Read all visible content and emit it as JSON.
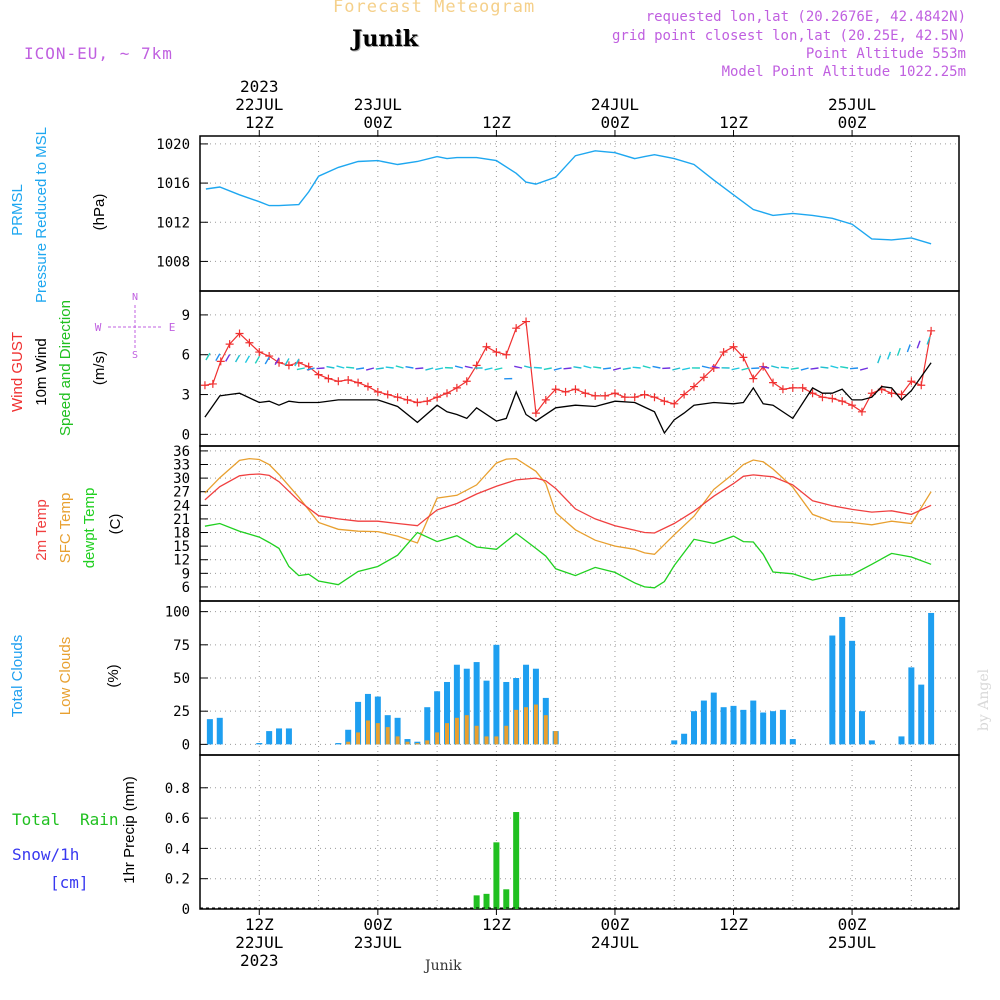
{
  "header": {
    "title": "Forecast Meteogram",
    "location": "Junik",
    "model": "ICON-EU, ~ 7km",
    "requested": "requested lon,lat (20.2676E, 42.4842N)",
    "grid_point": "grid point closest lon,lat (20.25E, 42.5N)",
    "point_altitude": "Point Altitude 553m",
    "model_altitude": "Model Point Altitude 1022.25m",
    "credit": "by Angel",
    "footer_location": "Junik"
  },
  "colors": {
    "title": "#f5d08a",
    "info": "#c060e0",
    "pressure": "#1ea7f0",
    "gust": "#f03030",
    "wind": "#000000",
    "dir": "#20c020",
    "temp2m": "#f04040",
    "sfc": "#e8a030",
    "dew": "#20d020",
    "total_cloud": "#1e9ff0",
    "low_cloud": "#e8a030",
    "rain": "#20c020",
    "snow": "#3838f0"
  },
  "time_axis": {
    "top_labels": [
      {
        "h": 12,
        "lines": [
          "2023",
          "22JUL",
          "12Z"
        ]
      },
      {
        "h": 24,
        "lines": [
          "23JUL",
          "00Z"
        ]
      },
      {
        "h": 36,
        "lines": [
          "12Z"
        ]
      },
      {
        "h": 48,
        "lines": [
          "24JUL",
          "00Z"
        ]
      },
      {
        "h": 60,
        "lines": [
          "12Z"
        ]
      },
      {
        "h": 72,
        "lines": [
          "25JUL",
          "00Z"
        ]
      }
    ],
    "bottom_labels": [
      {
        "h": 12,
        "lines": [
          "12Z",
          "22JUL",
          "2023"
        ]
      },
      {
        "h": 24,
        "lines": [
          "00Z",
          "23JUL"
        ]
      },
      {
        "h": 36,
        "lines": [
          "12Z"
        ]
      },
      {
        "h": 48,
        "lines": [
          "00Z",
          "24JUL"
        ]
      },
      {
        "h": 60,
        "lines": [
          "12Z"
        ]
      },
      {
        "h": 72,
        "lines": [
          "00Z",
          "25JUL"
        ]
      }
    ]
  },
  "chart_data": [
    {
      "type": "line",
      "title": "PRMSL Pressure Reduced to MSL",
      "ylabel": "(hPa)",
      "ylim": [
        1006,
        1020.4
      ],
      "yticks": [
        "1008",
        "1012",
        "1016",
        "1020"
      ],
      "series": [
        {
          "name": "PRMSL",
          "x": [
            6.6,
            8,
            10,
            12,
            13,
            14,
            16,
            17,
            18,
            20,
            22,
            24,
            26,
            28,
            30,
            31,
            32,
            33,
            34,
            36,
            38,
            39,
            40,
            42,
            44,
            46,
            48,
            50,
            51,
            52,
            54,
            56,
            58,
            60,
            62,
            64,
            66,
            68,
            70,
            72,
            74,
            76,
            78,
            80
          ],
          "values": [
            1015.4,
            1015.6,
            1014.8,
            1014.1,
            1013.7,
            1013.7,
            1013.8,
            1015.1,
            1016.7,
            1017.6,
            1018.2,
            1018.3,
            1017.9,
            1018.2,
            1018.7,
            1018.5,
            1018.6,
            1018.6,
            1018.6,
            1018.3,
            1017.0,
            1016.1,
            1015.9,
            1016.6,
            1018.8,
            1019.3,
            1019.1,
            1018.5,
            1018.7,
            1018.9,
            1018.5,
            1017.9,
            1016.3,
            1014.8,
            1013.3,
            1012.7,
            1012.9,
            1012.7,
            1012.4,
            1011.8,
            1010.3,
            1010.2,
            1010.4,
            1009.8
          ]
        }
      ]
    },
    {
      "type": "line",
      "title": "Wind GUST / 10m Wind Speed and Direction",
      "ylabel": "(m/s)",
      "ylim": [
        -0.5,
        10.5
      ],
      "yticks": [
        "0",
        "3",
        "6",
        "9"
      ],
      "compass": [
        "N",
        "S",
        "W",
        "E"
      ],
      "series": [
        {
          "name": "Wind GUST",
          "x": [
            6.5,
            7.3,
            8.1,
            9,
            10,
            11,
            12,
            13,
            14,
            15,
            16,
            17,
            18,
            19,
            20,
            21,
            22,
            23,
            24,
            25,
            26,
            27,
            28,
            29,
            30,
            31,
            32,
            33,
            34,
            35,
            36,
            37,
            38,
            39,
            40,
            41,
            42,
            43,
            44,
            45,
            46,
            47,
            48,
            49,
            50,
            51,
            52,
            53,
            54,
            55,
            56,
            57,
            58,
            59,
            60,
            61,
            62,
            63,
            64,
            65,
            66,
            67,
            68,
            69,
            70,
            71,
            72,
            73,
            74,
            75,
            76,
            77,
            78,
            79,
            80
          ],
          "values": [
            3.7,
            3.8,
            5.5,
            6.8,
            7.6,
            6.9,
            6.2,
            5.9,
            5.4,
            5.2,
            5.4,
            5.1,
            4.5,
            4.2,
            4.0,
            4.1,
            3.9,
            3.6,
            3.2,
            3.0,
            2.8,
            2.6,
            2.4,
            2.5,
            2.8,
            3.1,
            3.5,
            4.0,
            5.2,
            6.6,
            6.2,
            6.0,
            8.0,
            8.5,
            1.6,
            2.6,
            3.4,
            3.2,
            3.4,
            3.1,
            2.9,
            2.9,
            3.1,
            2.8,
            2.8,
            3.0,
            2.8,
            2.5,
            2.3,
            3.0,
            3.6,
            4.3,
            5.0,
            6.2,
            6.6,
            5.8,
            4.2,
            5.1,
            3.9,
            3.4,
            3.5,
            3.5,
            3.1,
            2.8,
            2.7,
            2.5,
            2.2,
            1.7,
            3.1,
            3.4,
            3.1,
            3.0,
            4.0,
            3.7,
            7.8
          ]
        },
        {
          "name": "10m Wind",
          "x": [
            6.5,
            8,
            9,
            10,
            12,
            13,
            14,
            15,
            16,
            18,
            20,
            22,
            24,
            26,
            28,
            30,
            31,
            32,
            33,
            34,
            36,
            37,
            38,
            39,
            40,
            42,
            44,
            46,
            48,
            50,
            52,
            53,
            54,
            55,
            56,
            58,
            60,
            61,
            62,
            63,
            64,
            66,
            68,
            69,
            70,
            71,
            72,
            73,
            74,
            75,
            76,
            77,
            78,
            80
          ],
          "values": [
            1.3,
            2.9,
            3.0,
            3.1,
            2.4,
            2.5,
            2.2,
            2.5,
            2.4,
            2.4,
            2.6,
            2.6,
            2.6,
            2.1,
            0.9,
            2.2,
            1.7,
            1.5,
            1.2,
            2.0,
            1.0,
            1.2,
            3.2,
            1.5,
            1.0,
            2.0,
            2.2,
            2.1,
            2.5,
            2.4,
            1.7,
            0.1,
            1.1,
            1.6,
            2.2,
            2.4,
            2.3,
            2.4,
            3.5,
            2.3,
            2.2,
            1.2,
            3.5,
            3.1,
            3.1,
            3.4,
            2.6,
            2.6,
            2.8,
            3.6,
            3.5,
            2.6,
            3.3,
            5.4
          ]
        }
      ]
    },
    {
      "type": "line",
      "title": "2m Temp / SFC Temp / dewpt Temp",
      "ylabel": "(C)",
      "ylim": [
        4,
        36.2
      ],
      "yticks": [
        "6",
        "9",
        "12",
        "15",
        "18",
        "21",
        "24",
        "27",
        "30",
        "33",
        "36"
      ],
      "series": [
        {
          "name": "2m Temp",
          "x": [
            6.5,
            8,
            10,
            11,
            12,
            13,
            14,
            16,
            18,
            20,
            22,
            24,
            26,
            28,
            30,
            32,
            34,
            36,
            38,
            40,
            41,
            42,
            44,
            46,
            48,
            50,
            51,
            52,
            54,
            56,
            58,
            60,
            61,
            62,
            64,
            66,
            68,
            70,
            72,
            74,
            76,
            78,
            80
          ],
          "values": [
            25.2,
            28.1,
            30.5,
            30.8,
            30.9,
            30.6,
            29.2,
            25.0,
            21.7,
            21.0,
            20.5,
            20.5,
            20.0,
            19.5,
            23.0,
            24.4,
            26.5,
            28.2,
            29.6,
            30.0,
            29.4,
            27.7,
            23.2,
            21.0,
            19.5,
            18.5,
            18.0,
            17.9,
            20.0,
            22.7,
            26.0,
            28.8,
            30.4,
            30.7,
            30.3,
            28.5,
            25.0,
            23.9,
            23.1,
            22.5,
            22.8,
            22.0,
            24.0
          ]
        },
        {
          "name": "SFC Temp",
          "x": [
            6.5,
            8,
            10,
            11,
            12,
            13,
            14,
            16,
            18,
            20,
            22,
            24,
            26,
            28,
            30,
            32,
            34,
            36,
            37,
            38,
            40,
            41,
            42,
            44,
            46,
            48,
            50,
            51,
            52,
            54,
            56,
            58,
            60,
            61,
            62,
            63,
            64,
            66,
            68,
            70,
            72,
            74,
            76,
            78,
            80
          ],
          "values": [
            26.7,
            30.1,
            33.9,
            34.3,
            34.1,
            33.0,
            30.8,
            25.8,
            20.2,
            18.7,
            18.3,
            18.2,
            17.2,
            15.7,
            25.6,
            26.2,
            28.5,
            33.3,
            34.2,
            34.3,
            31.5,
            28.8,
            22.4,
            18.6,
            16.3,
            15.0,
            14.3,
            13.5,
            13.2,
            17.5,
            21.6,
            27.5,
            31.0,
            33.0,
            34.0,
            33.6,
            32.0,
            28.0,
            22.0,
            20.4,
            20.2,
            19.7,
            20.5,
            20.0,
            27.0
          ]
        },
        {
          "name": "dewpt Temp",
          "x": [
            6.5,
            8,
            10,
            12,
            13,
            14,
            15,
            16,
            17,
            18,
            20,
            22,
            24,
            26,
            28,
            30,
            32,
            34,
            36,
            38,
            40,
            41,
            42,
            44,
            46,
            48,
            50,
            51,
            52,
            53,
            54,
            56,
            58,
            60,
            61,
            62,
            63,
            64,
            66,
            68,
            70,
            72,
            74,
            76,
            78,
            80
          ],
          "values": [
            19.4,
            20.0,
            18.3,
            17.0,
            15.8,
            14.5,
            10.5,
            8.5,
            8.8,
            7.3,
            6.5,
            9.4,
            10.5,
            13.0,
            18.0,
            16.0,
            17.3,
            14.8,
            14.3,
            17.8,
            14.5,
            12.8,
            10.0,
            8.5,
            10.3,
            9.2,
            6.9,
            6.0,
            5.8,
            7.2,
            10.7,
            16.5,
            15.6,
            17.2,
            16.0,
            15.9,
            13.2,
            9.3,
            8.9,
            7.5,
            8.5,
            8.7,
            11.0,
            13.4,
            12.6,
            11.0
          ]
        }
      ]
    },
    {
      "type": "bar",
      "title": "Total Clouds / Low Clouds",
      "ylabel": "(%)",
      "ylim": [
        -5,
        105
      ],
      "yticks": [
        "0",
        "25",
        "50",
        "75",
        "100"
      ],
      "series": [
        {
          "name": "Total Clouds",
          "x": [
            7,
            8,
            10,
            11,
            12,
            13,
            14,
            15,
            16,
            17,
            18,
            19,
            20,
            21,
            22,
            23,
            24,
            25,
            26,
            27,
            28,
            29,
            30,
            31,
            32,
            33,
            34,
            35,
            36,
            37,
            38,
            39,
            40,
            41,
            42,
            43,
            44,
            45,
            46,
            47,
            48,
            49,
            50,
            51,
            52,
            53,
            54,
            55,
            56,
            57,
            58,
            59,
            60,
            61,
            62,
            63,
            64,
            65,
            66,
            67,
            68,
            69,
            70,
            71,
            72,
            73,
            74,
            75,
            76,
            77,
            78,
            79,
            80
          ],
          "values": [
            19,
            20,
            0,
            0,
            1,
            10,
            12,
            12,
            0,
            0,
            0,
            0,
            1,
            11,
            32,
            38,
            36,
            22,
            20,
            4,
            2,
            28,
            40,
            47,
            60,
            57,
            62,
            48,
            75,
            47,
            50,
            60,
            57,
            35,
            10,
            0,
            0,
            0,
            0,
            0,
            0,
            0,
            0,
            0,
            0,
            0,
            3,
            8,
            25,
            33,
            39,
            28,
            29,
            26,
            33,
            24,
            25,
            26,
            4,
            0,
            0,
            0,
            82,
            96,
            78,
            25,
            3,
            0,
            0,
            6,
            58,
            45,
            99
          ]
        },
        {
          "name": "Low Clouds",
          "x": [
            21,
            22,
            23,
            24,
            25,
            26,
            27,
            28,
            29,
            30,
            31,
            32,
            33,
            34,
            35,
            36,
            37,
            38,
            39,
            40,
            41,
            42
          ],
          "values": [
            2,
            9,
            18,
            16,
            13,
            6,
            2,
            1,
            3,
            9,
            16,
            20,
            22,
            14,
            6,
            6,
            14,
            26,
            28,
            30,
            22,
            10
          ]
        }
      ]
    },
    {
      "type": "bar",
      "title": "1hr Precip (mm)",
      "ylabel": "1hr Precip (mm)",
      "ylim": [
        0,
        0.99
      ],
      "yticks": [
        "0",
        "0.2",
        "0.4",
        "0.6",
        "0.8"
      ],
      "legend": [
        "Total Rain",
        "Snow/1h",
        "[cm]"
      ],
      "series": [
        {
          "name": "Total Rain",
          "x": [
            34,
            35,
            36,
            37,
            38
          ],
          "values": [
            0.09,
            0.1,
            0.44,
            0.13,
            0.64
          ]
        },
        {
          "name": "Snow/1h",
          "x": [],
          "values": []
        }
      ]
    }
  ]
}
